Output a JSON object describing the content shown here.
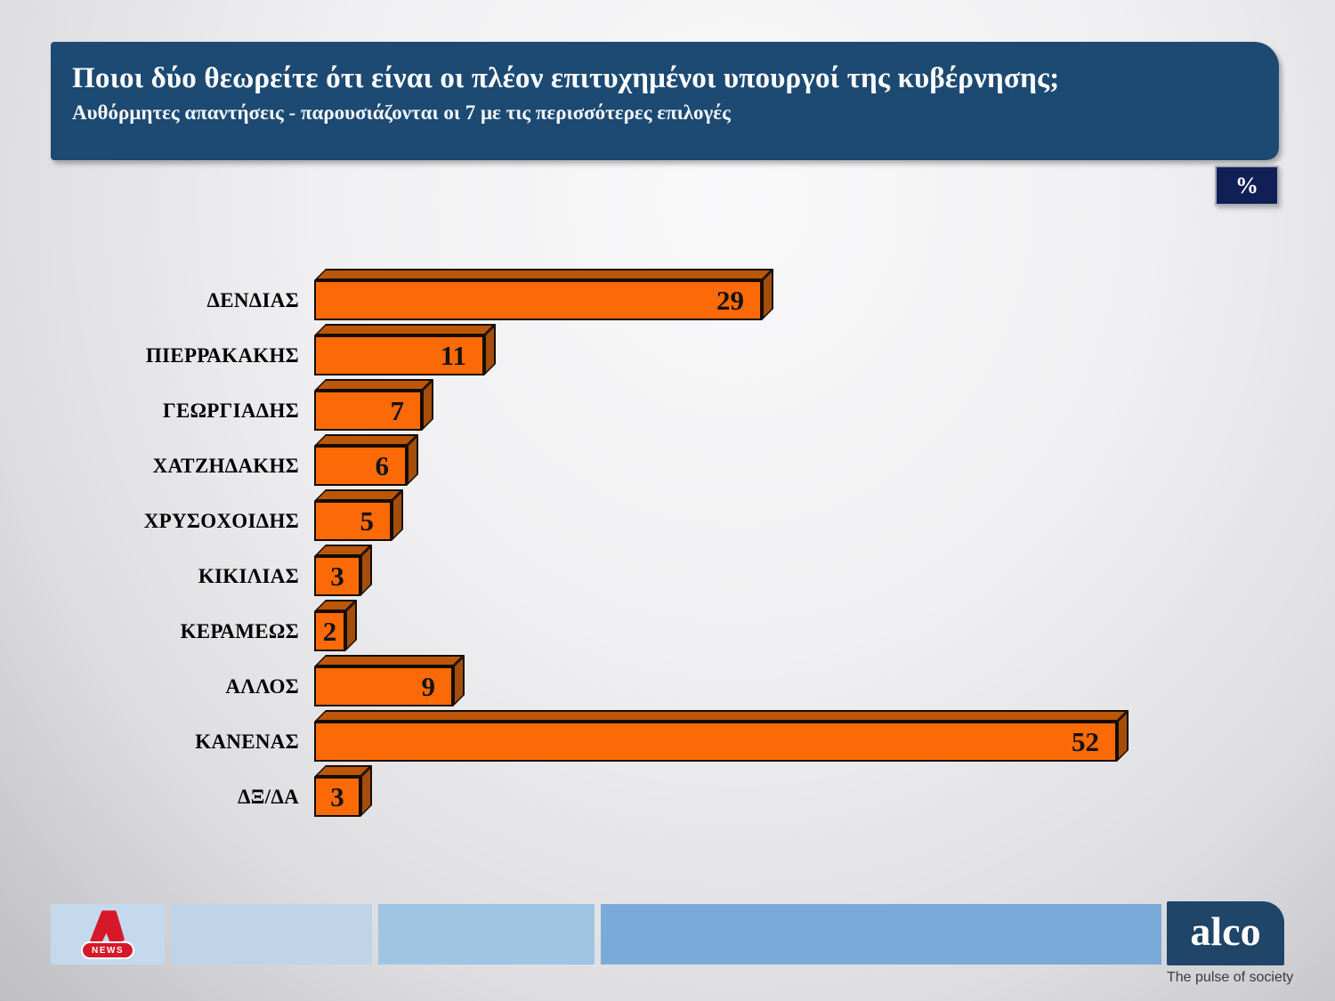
{
  "header": {
    "title": "Ποιοι δύο θεωρείτε ότι είναι οι πλέον επιτυχημένοι υπουργοί της κυβέρνησης;",
    "subtitle": "Αυθόρμητες απαντήσεις - παρουσιάζονται οι 7 με τις περισσότερες επιλογές"
  },
  "unit_badge": "%",
  "chart_data": {
    "type": "bar",
    "orientation": "horizontal",
    "title": "Ποιοι δύο θεωρείτε ότι είναι οι πλέον επιτυχημένοι υπουργοί της κυβέρνησης;",
    "subtitle": "Αυθόρμητες απαντήσεις - παρουσιάζονται οι 7 με τις περισσότερες επιλογές",
    "unit": "%",
    "categories": [
      "ΔΕΝΔΙΑΣ",
      "ΠΙΕΡΡΑΚΑΚΗΣ",
      "ΓΕΩΡΓΙΑΔΗΣ",
      "ΧΑΤΖΗΔΑΚΗΣ",
      "ΧΡΥΣΟΧΟΙΔΗΣ",
      "ΚΙΚΙΛΙΑΣ",
      "ΚΕΡΑΜΕΩΣ",
      "ΑΛΛΟΣ",
      "ΚΑΝΕΝΑΣ",
      "ΔΞ/ΔΑ"
    ],
    "values": [
      29,
      11,
      7,
      6,
      5,
      3,
      2,
      9,
      52,
      3
    ],
    "xlim": [
      0,
      60
    ],
    "grid": false,
    "legend": false,
    "style": "3d-orange-bars"
  },
  "footer": {
    "alpha_news": {
      "news_label": "NEWS"
    },
    "alco": {
      "logo_text": "alco",
      "tagline": "The pulse of society"
    }
  },
  "colors": {
    "header_bg": "#1D4A72",
    "badge_bg": "#101F56",
    "badge_border": "#ABABB9",
    "bar_front": "#FB6A07",
    "bar_top": "#BC5609",
    "bar_side": "#A54D0B",
    "bar_outline": "#140D04",
    "value_color": "#141414",
    "label_color": "#000000",
    "footer_box1": "#C5D9EC",
    "footer_box2": "#BFD4E8",
    "footer_box3": "#A0C5E3",
    "footer_box4": "#7AABD8",
    "alco_bg": "#1F4568",
    "alco_tagline_color": "#3A3A3A",
    "alpha_red": "#D7182A"
  }
}
